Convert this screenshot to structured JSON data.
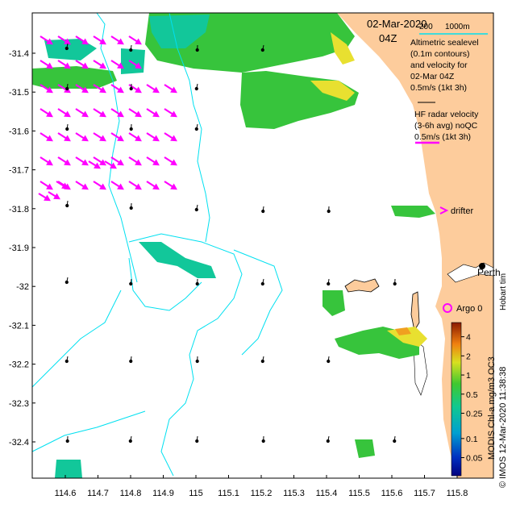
{
  "map": {
    "date": "02-Mar-2020",
    "time": "04Z",
    "scale_left": "200",
    "scale_right": "1000m",
    "legend_altimetric": [
      "Altimetric sealevel",
      "(0.1m contours)",
      "and velocity for",
      "02-Mar 04Z",
      "0.5m/s (1kt 3h)"
    ],
    "legend_hf": [
      "HF radar velocity",
      "(3-6h avg) noQC",
      "0.5m/s (1kt 3h)"
    ],
    "drifter_label": "drifter",
    "perth_label": "Perth",
    "hobart_label": "Hobart tim",
    "argo_label": "Argo 0",
    "credit": "© IMOS 12-Mar-2020 11:38:38",
    "colorbar_title": "MODIS Chl-a mg/m3 OC3",
    "colorbar_ticks": [
      "4",
      "2",
      "1",
      "0.5",
      "0.25",
      "0.1",
      "0.05"
    ],
    "lon_ticks": [
      "114.6",
      "114.7",
      "114.8",
      "114.9",
      "115",
      "115.1",
      "115.2",
      "115.3",
      "115.4",
      "115.5",
      "115.6",
      "115.7",
      "115.8"
    ],
    "lat_ticks": [
      "-31.4",
      "-31.5",
      "-31.6",
      "-31.7",
      "-31.8",
      "-31.9",
      "-32",
      "-32.1",
      "-32.2",
      "-32.3",
      "-32.4"
    ]
  },
  "colors": {
    "land": "#fdcc9c",
    "contour": "#00e0f0",
    "hf_vector": "#ff00ff",
    "chl_green": "#37c43c",
    "chl_teal": "#12c79a",
    "chl_yellow": "#e8e030",
    "chl_orange": "#f0a020"
  }
}
